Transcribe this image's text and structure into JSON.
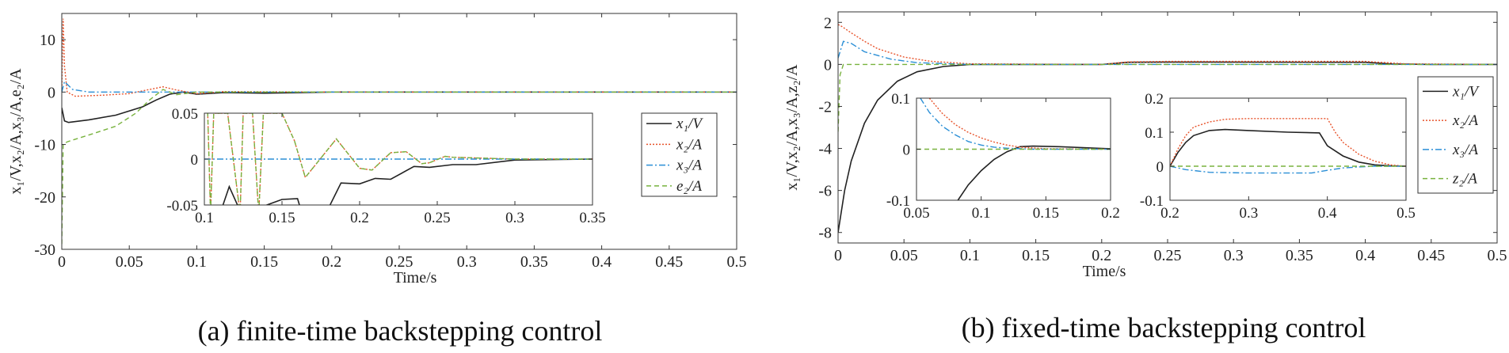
{
  "colors": {
    "x1": "#222222",
    "x2": "#e8542c",
    "x3": "#2b8fd6",
    "e2": "#78b23e",
    "axis": "#333333"
  },
  "captions": {
    "a": "(a) finite-time backstepping control",
    "b": "(b) fixed-time backstepping control"
  },
  "chart_data": [
    {
      "id": "a-main",
      "type": "line",
      "xlabel": "Time/s",
      "ylabel": "x₁/V,x₂/A,x₃/A,e₂/A",
      "xlim": [
        0,
        0.5
      ],
      "ylim": [
        -30,
        15
      ],
      "xticks": [
        "0",
        "0.05",
        "0.1",
        "0.15",
        "0.2",
        "0.25",
        "0.3",
        "0.35",
        "0.4",
        "0.45",
        "0.5"
      ],
      "yticks": [
        "10",
        "0",
        "-10",
        "-20",
        "-30"
      ],
      "legend": [
        "x₁/V",
        "x₂/A",
        "x₃/A",
        "e₂/A"
      ],
      "legend_position": "right",
      "series": [
        {
          "name": "x1/V",
          "key": "x1",
          "dash": "",
          "x": [
            0,
            0.002,
            0.005,
            0.02,
            0.04,
            0.06,
            0.07,
            0.08,
            0.09,
            0.1,
            0.12,
            0.15,
            0.2,
            0.3,
            0.5
          ],
          "y": [
            -3,
            -5.5,
            -5.8,
            -5.3,
            -4.4,
            -2.8,
            -1.5,
            -0.4,
            0,
            -0.4,
            -0.1,
            -0.2,
            0,
            0,
            0
          ]
        },
        {
          "name": "x2/A",
          "key": "x2",
          "dash": "2,2",
          "x": [
            0,
            0.001,
            0.002,
            0.004,
            0.01,
            0.03,
            0.05,
            0.065,
            0.075,
            0.085,
            0.1,
            0.12,
            0.2,
            0.5
          ],
          "y": [
            0,
            14,
            5,
            0,
            -0.8,
            -0.6,
            -0.3,
            0.5,
            1,
            0.4,
            -0.3,
            0.1,
            0,
            0
          ]
        },
        {
          "name": "x3/A",
          "key": "x3",
          "dash": "8,3,2,3",
          "x": [
            0,
            0.002,
            0.008,
            0.02,
            0.05,
            0.1,
            0.5
          ],
          "y": [
            0,
            2,
            0.5,
            0,
            0,
            0,
            0
          ]
        },
        {
          "name": "e2/A",
          "key": "e2",
          "dash": "6,4",
          "x": [
            0,
            0.001,
            0.004,
            0.01,
            0.02,
            0.04,
            0.055,
            0.065,
            0.075,
            0.085,
            0.1,
            0.12,
            0.2,
            0.5
          ],
          "y": [
            -29,
            -10,
            -9.5,
            -9,
            -8.2,
            -6.5,
            -4,
            -1.5,
            0.5,
            -0.5,
            0,
            0,
            0,
            0
          ]
        }
      ]
    },
    {
      "id": "a-inset",
      "type": "line",
      "xlim": [
        0.1,
        0.35
      ],
      "ylim": [
        -0.05,
        0.05
      ],
      "xticks": [
        "0.1",
        "0.15",
        "0.2",
        "0.25",
        "0.3",
        "0.35"
      ],
      "yticks": [
        "0.05",
        "0",
        "-0.05"
      ],
      "series": [
        {
          "name": "x1/V",
          "key": "x1",
          "dash": "",
          "x": [
            0.112,
            0.116,
            0.12,
            0.124,
            0.15,
            0.16,
            0.163,
            0.178,
            0.188,
            0.2,
            0.21,
            0.22,
            0.235,
            0.245,
            0.26,
            0.275,
            0.3,
            0.35
          ],
          "y": [
            -0.05,
            -0.03,
            -0.045,
            -0.06,
            -0.044,
            -0.043,
            -0.06,
            -0.06,
            -0.026,
            -0.027,
            -0.021,
            -0.022,
            -0.008,
            -0.009,
            -0.006,
            -0.006,
            -0.001,
            0
          ]
        },
        {
          "name": "x2/A",
          "key": "x2",
          "dash": "2,2",
          "x": [
            0.102,
            0.104,
            0.106,
            0.115,
            0.123,
            0.125,
            0.131,
            0.135,
            0.138,
            0.145,
            0.15,
            0.158,
            0.165,
            0.185,
            0.2,
            0.208,
            0.22,
            0.23,
            0.24,
            0.245,
            0.255,
            0.26,
            0.3,
            0.35
          ],
          "y": [
            0.06,
            -0.06,
            0.05,
            0.05,
            -0.06,
            0.05,
            0.05,
            -0.06,
            0.05,
            0.05,
            0.05,
            0.02,
            -0.02,
            0.022,
            -0.01,
            -0.012,
            0.007,
            0.008,
            -0.005,
            -0.004,
            0.003,
            0.002,
            0,
            0
          ]
        },
        {
          "name": "x3/A",
          "key": "x3",
          "dash": "8,3,2,3",
          "x": [
            0.1,
            0.35
          ],
          "y": [
            0,
            0
          ]
        },
        {
          "name": "e2/A",
          "key": "e2",
          "dash": "6,4",
          "x": [
            0.102,
            0.104,
            0.106,
            0.115,
            0.123,
            0.125,
            0.131,
            0.135,
            0.138,
            0.145,
            0.15,
            0.158,
            0.165,
            0.185,
            0.2,
            0.208,
            0.22,
            0.23,
            0.24,
            0.245,
            0.255,
            0.26,
            0.3,
            0.35
          ],
          "y": [
            0.06,
            -0.06,
            0.05,
            0.05,
            -0.06,
            0.05,
            0.05,
            -0.06,
            0.05,
            0.05,
            0.05,
            0.02,
            -0.02,
            0.022,
            -0.01,
            -0.012,
            0.007,
            0.008,
            -0.005,
            -0.004,
            0.003,
            0.002,
            0,
            0
          ]
        }
      ]
    },
    {
      "id": "b-main",
      "type": "line",
      "xlabel": "Time/s",
      "ylabel": "x₁/V,x₂/A,x₃/A,z₂/A",
      "xlim": [
        0,
        0.5
      ],
      "ylim": [
        -8.5,
        2.5
      ],
      "xticks": [
        "0",
        "0.05",
        "0.1",
        "0.15",
        "0.2",
        "0.25",
        "0.3",
        "0.35",
        "0.4",
        "0.45",
        "0.5"
      ],
      "yticks": [
        "2",
        "0",
        "-2",
        "-4",
        "-6",
        "-8"
      ],
      "legend": [
        "x₁/V",
        "x₂/A",
        "x₃/A",
        "z₂/A"
      ],
      "legend_position": "right",
      "series": [
        {
          "name": "x1/V",
          "key": "x1",
          "dash": "",
          "x": [
            0,
            0.005,
            0.01,
            0.02,
            0.03,
            0.045,
            0.06,
            0.08,
            0.1,
            0.13,
            0.2,
            0.22,
            0.25,
            0.4,
            0.42,
            0.45,
            0.5
          ],
          "y": [
            -8,
            -6,
            -4.6,
            -2.8,
            -1.7,
            -0.8,
            -0.35,
            -0.1,
            0,
            0,
            0,
            0.1,
            0.11,
            0.1,
            0.02,
            0,
            0
          ]
        },
        {
          "name": "x2/A",
          "key": "x2",
          "dash": "2,2",
          "x": [
            0,
            0.003,
            0.01,
            0.02,
            0.03,
            0.05,
            0.07,
            0.1,
            0.2,
            0.22,
            0.25,
            0.4,
            0.43,
            0.5
          ],
          "y": [
            1.9,
            1.8,
            1.5,
            1.1,
            0.75,
            0.35,
            0.15,
            0.03,
            0,
            0.12,
            0.14,
            0.14,
            0.03,
            0
          ]
        },
        {
          "name": "x3/A",
          "key": "x3",
          "dash": "8,3,2,3",
          "x": [
            0,
            0.004,
            0.01,
            0.02,
            0.04,
            0.06,
            0.1,
            0.5
          ],
          "y": [
            0.3,
            1.1,
            1,
            0.6,
            0.25,
            0.08,
            0,
            0
          ]
        },
        {
          "name": "z2/A",
          "key": "e2",
          "dash": "6,4",
          "x": [
            0,
            0.0015,
            0.004,
            0.5
          ],
          "y": [
            -3.2,
            -0.5,
            0,
            0
          ]
        }
      ]
    },
    {
      "id": "b-inset1",
      "type": "line",
      "xlim": [
        0.05,
        0.2
      ],
      "ylim": [
        -0.1,
        0.1
      ],
      "xticks": [
        "0.05",
        "0.1",
        "0.15",
        "0.2"
      ],
      "yticks": [
        "0.1",
        "0",
        "-0.1"
      ],
      "series": [
        {
          "name": "x1/V",
          "key": "x1",
          "dash": "",
          "x": [
            0.082,
            0.09,
            0.1,
            0.11,
            0.12,
            0.13,
            0.14,
            0.16,
            0.2
          ],
          "y": [
            -0.1,
            -0.07,
            -0.042,
            -0.02,
            -0.005,
            0.005,
            0.006,
            0.005,
            0.001
          ]
        },
        {
          "name": "x2/A",
          "key": "x2",
          "dash": "2,2",
          "x": [
            0.06,
            0.07,
            0.08,
            0.09,
            0.1,
            0.11,
            0.12,
            0.13,
            0.15,
            0.2
          ],
          "y": [
            0.1,
            0.07,
            0.048,
            0.033,
            0.022,
            0.014,
            0.008,
            0.004,
            0.001,
            0
          ]
        },
        {
          "name": "x3/A",
          "key": "x3",
          "dash": "8,3,2,3",
          "x": [
            0.053,
            0.06,
            0.07,
            0.08,
            0.09,
            0.1,
            0.11,
            0.12,
            0.14,
            0.2
          ],
          "y": [
            0.1,
            0.072,
            0.045,
            0.028,
            0.015,
            0.008,
            0.004,
            0.002,
            0,
            0
          ]
        },
        {
          "name": "z2/A",
          "key": "e2",
          "dash": "6,4",
          "x": [
            0.05,
            0.2
          ],
          "y": [
            0,
            0
          ]
        }
      ]
    },
    {
      "id": "b-inset2",
      "type": "line",
      "xlim": [
        0.2,
        0.5
      ],
      "ylim": [
        -0.1,
        0.2
      ],
      "xticks": [
        "0.2",
        "0.3",
        "0.4",
        "0.5"
      ],
      "yticks": [
        "0.2",
        "0.1",
        "0",
        "-0.1"
      ],
      "series": [
        {
          "name": "x1/V",
          "key": "x1",
          "dash": "",
          "x": [
            0.2,
            0.21,
            0.22,
            0.23,
            0.25,
            0.27,
            0.3,
            0.35,
            0.39,
            0.4,
            0.42,
            0.44,
            0.46,
            0.48,
            0.5
          ],
          "y": [
            0,
            0.04,
            0.07,
            0.09,
            0.105,
            0.108,
            0.105,
            0.1,
            0.098,
            0.06,
            0.03,
            0.012,
            0.004,
            0.001,
            0
          ]
        },
        {
          "name": "x2/A",
          "key": "x2",
          "dash": "2,2",
          "x": [
            0.2,
            0.21,
            0.22,
            0.23,
            0.25,
            0.27,
            0.3,
            0.35,
            0.4,
            0.41,
            0.42,
            0.44,
            0.46,
            0.48,
            0.5
          ],
          "y": [
            0,
            0.05,
            0.09,
            0.115,
            0.13,
            0.138,
            0.14,
            0.14,
            0.14,
            0.1,
            0.07,
            0.035,
            0.015,
            0.004,
            0
          ]
        },
        {
          "name": "x3/A",
          "key": "x3",
          "dash": "8,3,2,3",
          "x": [
            0.2,
            0.22,
            0.25,
            0.3,
            0.35,
            0.38,
            0.4,
            0.42,
            0.44,
            0.46,
            0.5
          ],
          "y": [
            0,
            -0.01,
            -0.018,
            -0.02,
            -0.02,
            -0.02,
            -0.012,
            -0.005,
            -0.002,
            0,
            0
          ]
        },
        {
          "name": "z2/A",
          "key": "e2",
          "dash": "6,4",
          "x": [
            0.2,
            0.5
          ],
          "y": [
            0,
            0
          ]
        }
      ]
    }
  ]
}
